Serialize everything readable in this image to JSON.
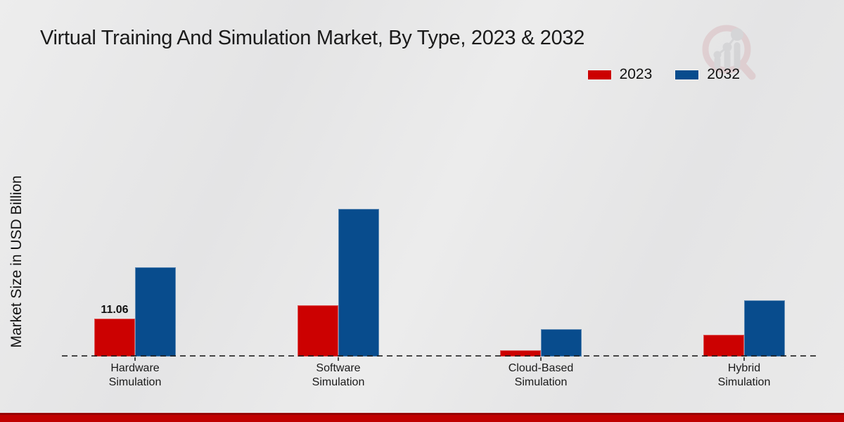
{
  "page_title": "Virtual Training And Simulation Market, By Type, 2023 & 2032",
  "watermark_icon": "magnifier-bar-chart-logo-icon",
  "chart_data": {
    "type": "bar",
    "title": "Virtual Training And Simulation Market, By Type, 2023 & 2032",
    "xlabel": "",
    "ylabel": "Market Size in USD Billion",
    "categories": [
      "Hardware Simulation",
      "Software Simulation",
      "Cloud-Based Simulation",
      "Hybrid Simulation"
    ],
    "series": [
      {
        "name": "2023",
        "color": "#cc0101",
        "values": [
          11.06,
          15.0,
          1.8,
          6.4
        ],
        "labels": [
          "11.06",
          null,
          null,
          null
        ]
      },
      {
        "name": "2032",
        "color": "#084c8d",
        "values": [
          26.0,
          43.0,
          8.0,
          16.4
        ],
        "labels": [
          null,
          null,
          null,
          null
        ]
      }
    ],
    "ylim": [
      0,
      45
    ],
    "grid": false,
    "y_axis_ticks_visible": false,
    "legend_position": "top-right",
    "baseline_style": "dashed"
  },
  "colors": {
    "series_2023": "#cc0101",
    "series_2032": "#084c8d",
    "bottom_band": "#c00000",
    "bottom_band_edge": "#970000",
    "baseline": "#3b3b3b",
    "background": "#e8e8e8",
    "text": "#1a1a1a"
  }
}
